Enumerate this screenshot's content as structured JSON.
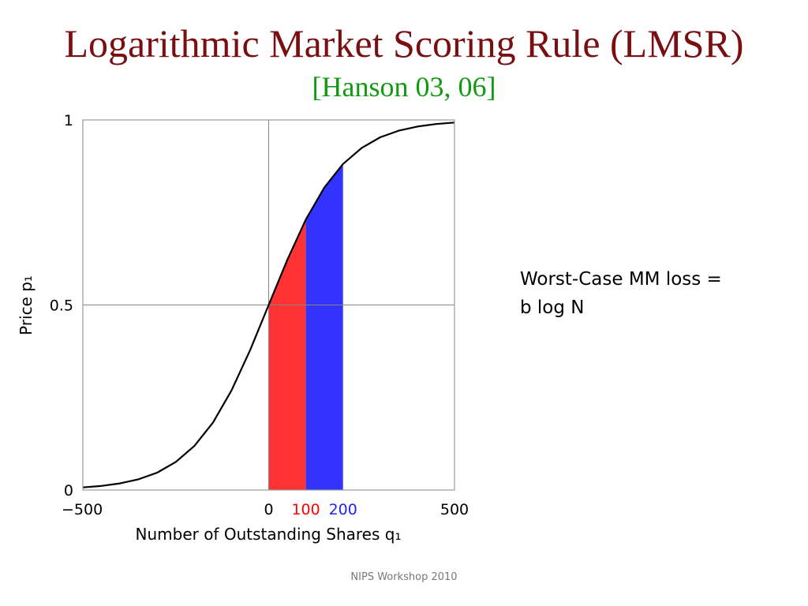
{
  "slide": {
    "title": "Logarithmic Market Scoring Rule (LMSR)",
    "subtitle": "[Hanson 03, 06]",
    "note_line1": "Worst-Case MM loss =",
    "note_line2": "b log N",
    "footer": "NIPS Workshop 2010"
  },
  "colors": {
    "title": "#7a0f12",
    "subtitle": "#119911",
    "curve": "#000000",
    "region_red": "#ff3333",
    "region_blue": "#3333ff",
    "grid": "#888888"
  },
  "chart_data": {
    "type": "line",
    "title": "",
    "xlabel": "Number of Outstanding Shares q₁",
    "ylabel": "Price p₁",
    "xlim": [
      -500,
      500
    ],
    "ylim": [
      0,
      1
    ],
    "x_ticks": [
      {
        "value": -500,
        "label": "−500",
        "color": "#000000"
      },
      {
        "value": 0,
        "label": "0",
        "color": "#000000"
      },
      {
        "value": 100,
        "label": "100",
        "color": "#ff0000"
      },
      {
        "value": 200,
        "label": "200",
        "color": "#2222ee"
      },
      {
        "value": 500,
        "label": "500",
        "color": "#000000"
      }
    ],
    "y_ticks": [
      {
        "value": 0,
        "label": "0"
      },
      {
        "value": 0.5,
        "label": "0.5"
      },
      {
        "value": 1,
        "label": "1"
      }
    ],
    "grid_lines": {
      "x": [
        0
      ],
      "y": [
        0.5
      ]
    },
    "series": [
      {
        "x": [
          -500,
          -450,
          -400,
          -350,
          -300,
          -250,
          -200,
          -150,
          -100,
          -50,
          0,
          50,
          100,
          150,
          200,
          250,
          300,
          350,
          400,
          450,
          500
        ],
        "y": [
          0.007,
          0.011,
          0.018,
          0.029,
          0.047,
          0.076,
          0.119,
          0.182,
          0.269,
          0.378,
          0.5,
          0.622,
          0.731,
          0.818,
          0.881,
          0.924,
          0.953,
          0.971,
          0.982,
          0.989,
          0.993
        ]
      }
    ],
    "shaded_regions": [
      {
        "from": 0,
        "to": 100,
        "color": "#ff3333"
      },
      {
        "from": 100,
        "to": 200,
        "color": "#3333ff"
      }
    ],
    "grid": true,
    "legend": "none"
  }
}
